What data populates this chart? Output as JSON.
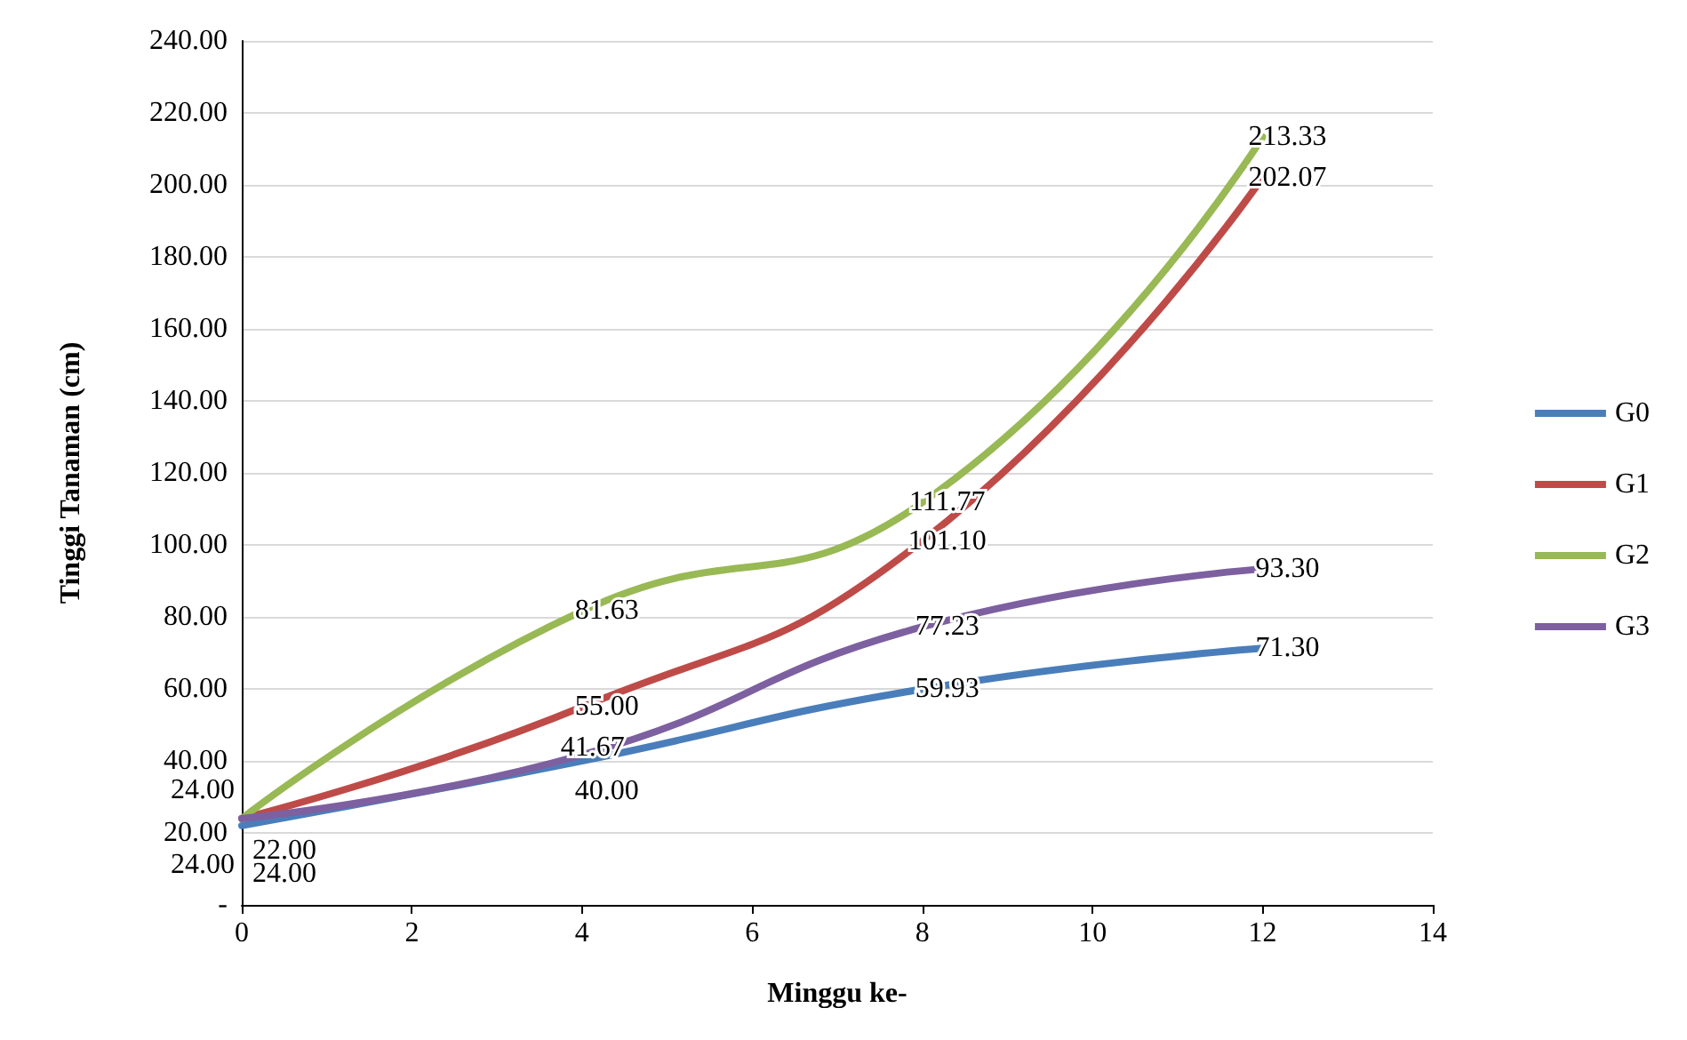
{
  "chart_data": {
    "type": "line",
    "xlabel": "Minggu ke-",
    "ylabel": "Tinggi Tanaman (cm)",
    "x": [
      0,
      4,
      8,
      12
    ],
    "series": [
      {
        "name": "G0",
        "color": "#4a7ebb",
        "values": [
          22.0,
          40.0,
          59.93,
          71.3
        ],
        "value_labels": [
          "22.00",
          "40.00",
          "59.93",
          "71.30"
        ]
      },
      {
        "name": "G1",
        "color": "#be4b48",
        "values": [
          24.0,
          55.0,
          101.1,
          202.07
        ],
        "value_labels": [
          "24.00",
          "55.00",
          "101.10",
          "202.07"
        ]
      },
      {
        "name": "G2",
        "color": "#98b954",
        "values": [
          24.0,
          81.63,
          111.77,
          213.33
        ],
        "value_labels": [
          "24.00",
          "81.63",
          "111.77",
          "213.33"
        ]
      },
      {
        "name": "G3",
        "color": "#7d60a0",
        "values": [
          24.0,
          41.67,
          77.23,
          93.3
        ],
        "value_labels": [
          "24.00",
          "41.67",
          "77.23",
          "93.30"
        ]
      }
    ],
    "xlim": [
      0,
      14
    ],
    "xticks": [
      0,
      2,
      4,
      6,
      8,
      10,
      12,
      14
    ],
    "ylim": [
      0,
      240
    ],
    "yticks": [
      {
        "value": 0,
        "label": "-"
      },
      {
        "value": 20,
        "label": "20.00"
      },
      {
        "value": 40,
        "label": "40.00"
      },
      {
        "value": 60,
        "label": "60.00"
      },
      {
        "value": 80,
        "label": "80.00"
      },
      {
        "value": 100,
        "label": "100.00"
      },
      {
        "value": 120,
        "label": "120.00"
      },
      {
        "value": 140,
        "label": "140.00"
      },
      {
        "value": 160,
        "label": "160.00"
      },
      {
        "value": 180,
        "label": "180.00"
      },
      {
        "value": 200,
        "label": "200.00"
      },
      {
        "value": 220,
        "label": "220.00"
      },
      {
        "value": 240,
        "label": "240.00"
      }
    ],
    "grid": "y",
    "legend": "right",
    "marker": "none",
    "line_style": "solid"
  }
}
